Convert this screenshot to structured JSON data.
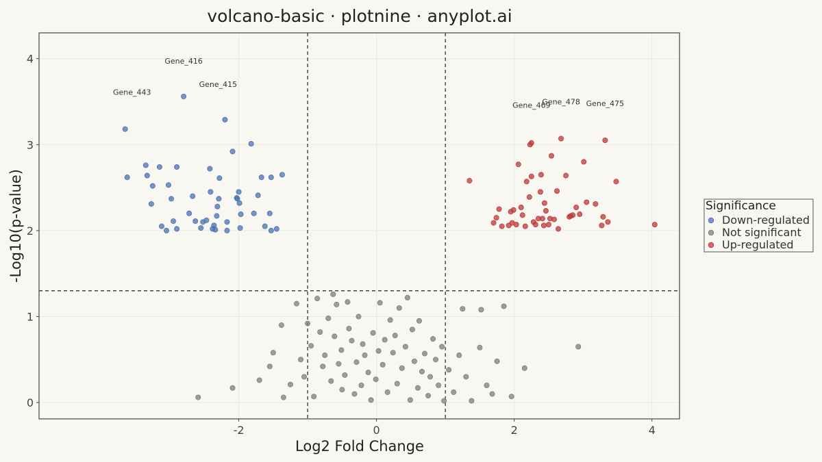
{
  "chart_data": {
    "type": "scatter",
    "title": "volcano-basic · plotnine · anyplot.ai",
    "xlabel": "Log2 Fold Change",
    "ylabel": "-Log10(p-value)",
    "xlim": [
      -4.9,
      4.4
    ],
    "ylim": [
      -0.19,
      4.3
    ],
    "x_ticks": [
      -2,
      0,
      2,
      4
    ],
    "x_tick_labels": [
      "-2",
      "0",
      "2",
      "4"
    ],
    "y_ticks": [
      0,
      1,
      2,
      3,
      4
    ],
    "y_tick_labels": [
      "0",
      "1",
      "2",
      "3",
      "4"
    ],
    "grid": true,
    "thresholds": {
      "log2fc": [
        -1,
        1
      ],
      "neg_log10_p": 1.3
    },
    "legend": {
      "title": "Significance",
      "position": "right"
    },
    "colors": {
      "background": "#f9f7f2",
      "down": "#4a72b0",
      "ns": "#7d7d7d",
      "up": "#bc3a3a",
      "threshold_line": "#333333"
    },
    "series": [
      {
        "name": "Down-regulated",
        "points": [
          [
            -3.65,
            3.18
          ],
          [
            -3.62,
            2.62
          ],
          [
            -3.35,
            2.76
          ],
          [
            -3.33,
            2.64
          ],
          [
            -3.25,
            2.52
          ],
          [
            -3.27,
            2.31
          ],
          [
            -3.15,
            2.74
          ],
          [
            -3.12,
            2.05
          ],
          [
            -3.05,
            2.0
          ],
          [
            -3.02,
            2.53
          ],
          [
            -2.98,
            2.37
          ],
          [
            -2.95,
            2.11
          ],
          [
            -2.9,
            2.02
          ],
          [
            -2.9,
            2.74
          ],
          [
            -2.8,
            3.56
          ],
          [
            -2.72,
            2.2
          ],
          [
            -2.67,
            2.4
          ],
          [
            -2.63,
            2.11
          ],
          [
            -2.55,
            2.03
          ],
          [
            -2.52,
            2.1
          ],
          [
            -2.47,
            2.12
          ],
          [
            -2.42,
            2.72
          ],
          [
            -2.41,
            2.45
          ],
          [
            -2.38,
            2.02
          ],
          [
            -2.36,
            2.06
          ],
          [
            -2.34,
            2.01
          ],
          [
            -2.32,
            2.17
          ],
          [
            -2.31,
            2.28
          ],
          [
            -2.29,
            2.37
          ],
          [
            -2.28,
            2.61
          ],
          [
            -2.2,
            3.29
          ],
          [
            -2.17,
            2.0
          ],
          [
            -2.17,
            2.1
          ],
          [
            -2.09,
            2.92
          ],
          [
            -2.03,
            2.38
          ],
          [
            -2.02,
            2.37
          ],
          [
            -2.0,
            2.45
          ],
          [
            -1.99,
            2.32
          ],
          [
            -1.98,
            2.03
          ],
          [
            -1.97,
            2.19
          ],
          [
            -1.82,
            3.01
          ],
          [
            -1.78,
            2.2
          ],
          [
            -1.72,
            2.41
          ],
          [
            -1.67,
            2.62
          ],
          [
            -1.62,
            2.05
          ],
          [
            -1.55,
            2.2
          ],
          [
            -1.53,
            2.0
          ],
          [
            -1.53,
            2.62
          ],
          [
            -1.45,
            2.02
          ],
          [
            -1.37,
            2.65
          ]
        ]
      },
      {
        "name": "Not significant",
        "points": [
          [
            -2.59,
            0.06
          ],
          [
            -2.09,
            0.17
          ],
          [
            -1.7,
            0.26
          ],
          [
            -1.55,
            0.42
          ],
          [
            -1.5,
            0.58
          ],
          [
            -1.38,
            0.9
          ],
          [
            -1.35,
            0.06
          ],
          [
            -1.25,
            0.21
          ],
          [
            -1.16,
            1.15
          ],
          [
            -1.1,
            0.5
          ],
          [
            -1.05,
            0.3
          ],
          [
            -1.0,
            0.92
          ],
          [
            -0.95,
            0.66
          ],
          [
            -0.91,
            0.07
          ],
          [
            -0.86,
            1.21
          ],
          [
            -0.82,
            0.82
          ],
          [
            -0.78,
            0.42
          ],
          [
            -0.75,
            0.55
          ],
          [
            -0.7,
            0.98
          ],
          [
            -0.66,
            0.25
          ],
          [
            -0.63,
            1.26
          ],
          [
            -0.61,
            0.77
          ],
          [
            -0.58,
            1.14
          ],
          [
            -0.55,
            0.45
          ],
          [
            -0.51,
            0.61
          ],
          [
            -0.5,
            0.15
          ],
          [
            -0.46,
            0.32
          ],
          [
            -0.42,
            1.17
          ],
          [
            -0.4,
            0.86
          ],
          [
            -0.36,
            0.72
          ],
          [
            -0.32,
            0.1
          ],
          [
            -0.29,
            0.47
          ],
          [
            -0.26,
            1.0
          ],
          [
            -0.22,
            0.2
          ],
          [
            -0.2,
            0.68
          ],
          [
            -0.17,
            0.55
          ],
          [
            -0.12,
            0.35
          ],
          [
            -0.08,
            0.03
          ],
          [
            -0.05,
            0.81
          ],
          [
            -0.01,
            0.27
          ],
          [
            0.03,
            0.6
          ],
          [
            0.05,
            1.16
          ],
          [
            0.09,
            0.44
          ],
          [
            0.12,
            0.73
          ],
          [
            0.16,
            0.12
          ],
          [
            0.2,
            0.96
          ],
          [
            0.24,
            0.58
          ],
          [
            0.27,
            0.78
          ],
          [
            0.3,
            0.22
          ],
          [
            0.33,
            1.1
          ],
          [
            0.37,
            0.4
          ],
          [
            0.42,
            0.65
          ],
          [
            0.45,
            1.22
          ],
          [
            0.49,
            0.03
          ],
          [
            0.52,
            0.85
          ],
          [
            0.55,
            0.48
          ],
          [
            0.6,
            0.17
          ],
          [
            0.62,
            0.95
          ],
          [
            0.66,
            0.36
          ],
          [
            0.7,
            0.57
          ],
          [
            0.75,
            0.08
          ],
          [
            0.78,
            0.3
          ],
          [
            0.82,
            0.74
          ],
          [
            0.86,
            0.5
          ],
          [
            0.9,
            0.2
          ],
          [
            0.95,
            0.65
          ],
          [
            0.98,
            0.02
          ],
          [
            1.05,
            0.38
          ],
          [
            1.12,
            0.12
          ],
          [
            1.2,
            0.55
          ],
          [
            1.25,
            1.09
          ],
          [
            1.3,
            0.3
          ],
          [
            1.38,
            0.02
          ],
          [
            1.5,
            0.64
          ],
          [
            1.52,
            1.08
          ],
          [
            1.6,
            0.2
          ],
          [
            1.68,
            0.1
          ],
          [
            1.75,
            0.48
          ],
          [
            1.85,
            1.12
          ],
          [
            1.96,
            0.07
          ],
          [
            2.15,
            0.4
          ],
          [
            2.93,
            0.65
          ]
        ]
      },
      {
        "name": "Up-regulated",
        "points": [
          [
            1.35,
            2.58
          ],
          [
            1.7,
            2.09
          ],
          [
            1.74,
            2.15
          ],
          [
            1.78,
            2.25
          ],
          [
            1.82,
            2.05
          ],
          [
            1.92,
            2.06
          ],
          [
            1.95,
            2.22
          ],
          [
            1.97,
            2.09
          ],
          [
            1.99,
            2.24
          ],
          [
            2.03,
            2.07
          ],
          [
            2.06,
            2.77
          ],
          [
            2.1,
            2.27
          ],
          [
            2.12,
            2.18
          ],
          [
            2.16,
            2.05
          ],
          [
            2.18,
            2.57
          ],
          [
            2.22,
            2.39
          ],
          [
            2.23,
            3.0
          ],
          [
            2.25,
            2.63
          ],
          [
            2.25,
            3.02
          ],
          [
            2.28,
            2.1
          ],
          [
            2.31,
            2.07
          ],
          [
            2.35,
            2.14
          ],
          [
            2.38,
            2.45
          ],
          [
            2.39,
            2.65
          ],
          [
            2.41,
            2.14
          ],
          [
            2.43,
            2.06
          ],
          [
            2.44,
            2.32
          ],
          [
            2.46,
            2.23
          ],
          [
            2.5,
            2.07
          ],
          [
            2.52,
            2.14
          ],
          [
            2.54,
            2.87
          ],
          [
            2.58,
            2.13
          ],
          [
            2.62,
            2.46
          ],
          [
            2.64,
            2.02
          ],
          [
            2.68,
            3.07
          ],
          [
            2.75,
            2.64
          ],
          [
            2.8,
            2.16
          ],
          [
            2.82,
            2.17
          ],
          [
            2.85,
            2.18
          ],
          [
            2.9,
            2.27
          ],
          [
            2.95,
            2.19
          ],
          [
            3.01,
            2.8
          ],
          [
            3.05,
            2.33
          ],
          [
            3.18,
            2.31
          ],
          [
            3.27,
            2.06
          ],
          [
            3.29,
            2.16
          ],
          [
            3.32,
            3.05
          ],
          [
            3.36,
            2.1
          ],
          [
            3.48,
            2.57
          ],
          [
            4.04,
            2.07
          ]
        ]
      }
    ],
    "annotations": [
      {
        "text": "Gene_416",
        "x": -2.8,
        "y": 3.94
      },
      {
        "text": "Gene_443",
        "x": -3.55,
        "y": 3.58
      },
      {
        "text": "Gene_415",
        "x": -2.3,
        "y": 3.67
      },
      {
        "text": "Gene_469",
        "x": 2.25,
        "y": 3.43
      },
      {
        "text": "Gene_478",
        "x": 2.68,
        "y": 3.47
      },
      {
        "text": "Gene_475",
        "x": 3.32,
        "y": 3.45
      }
    ]
  }
}
